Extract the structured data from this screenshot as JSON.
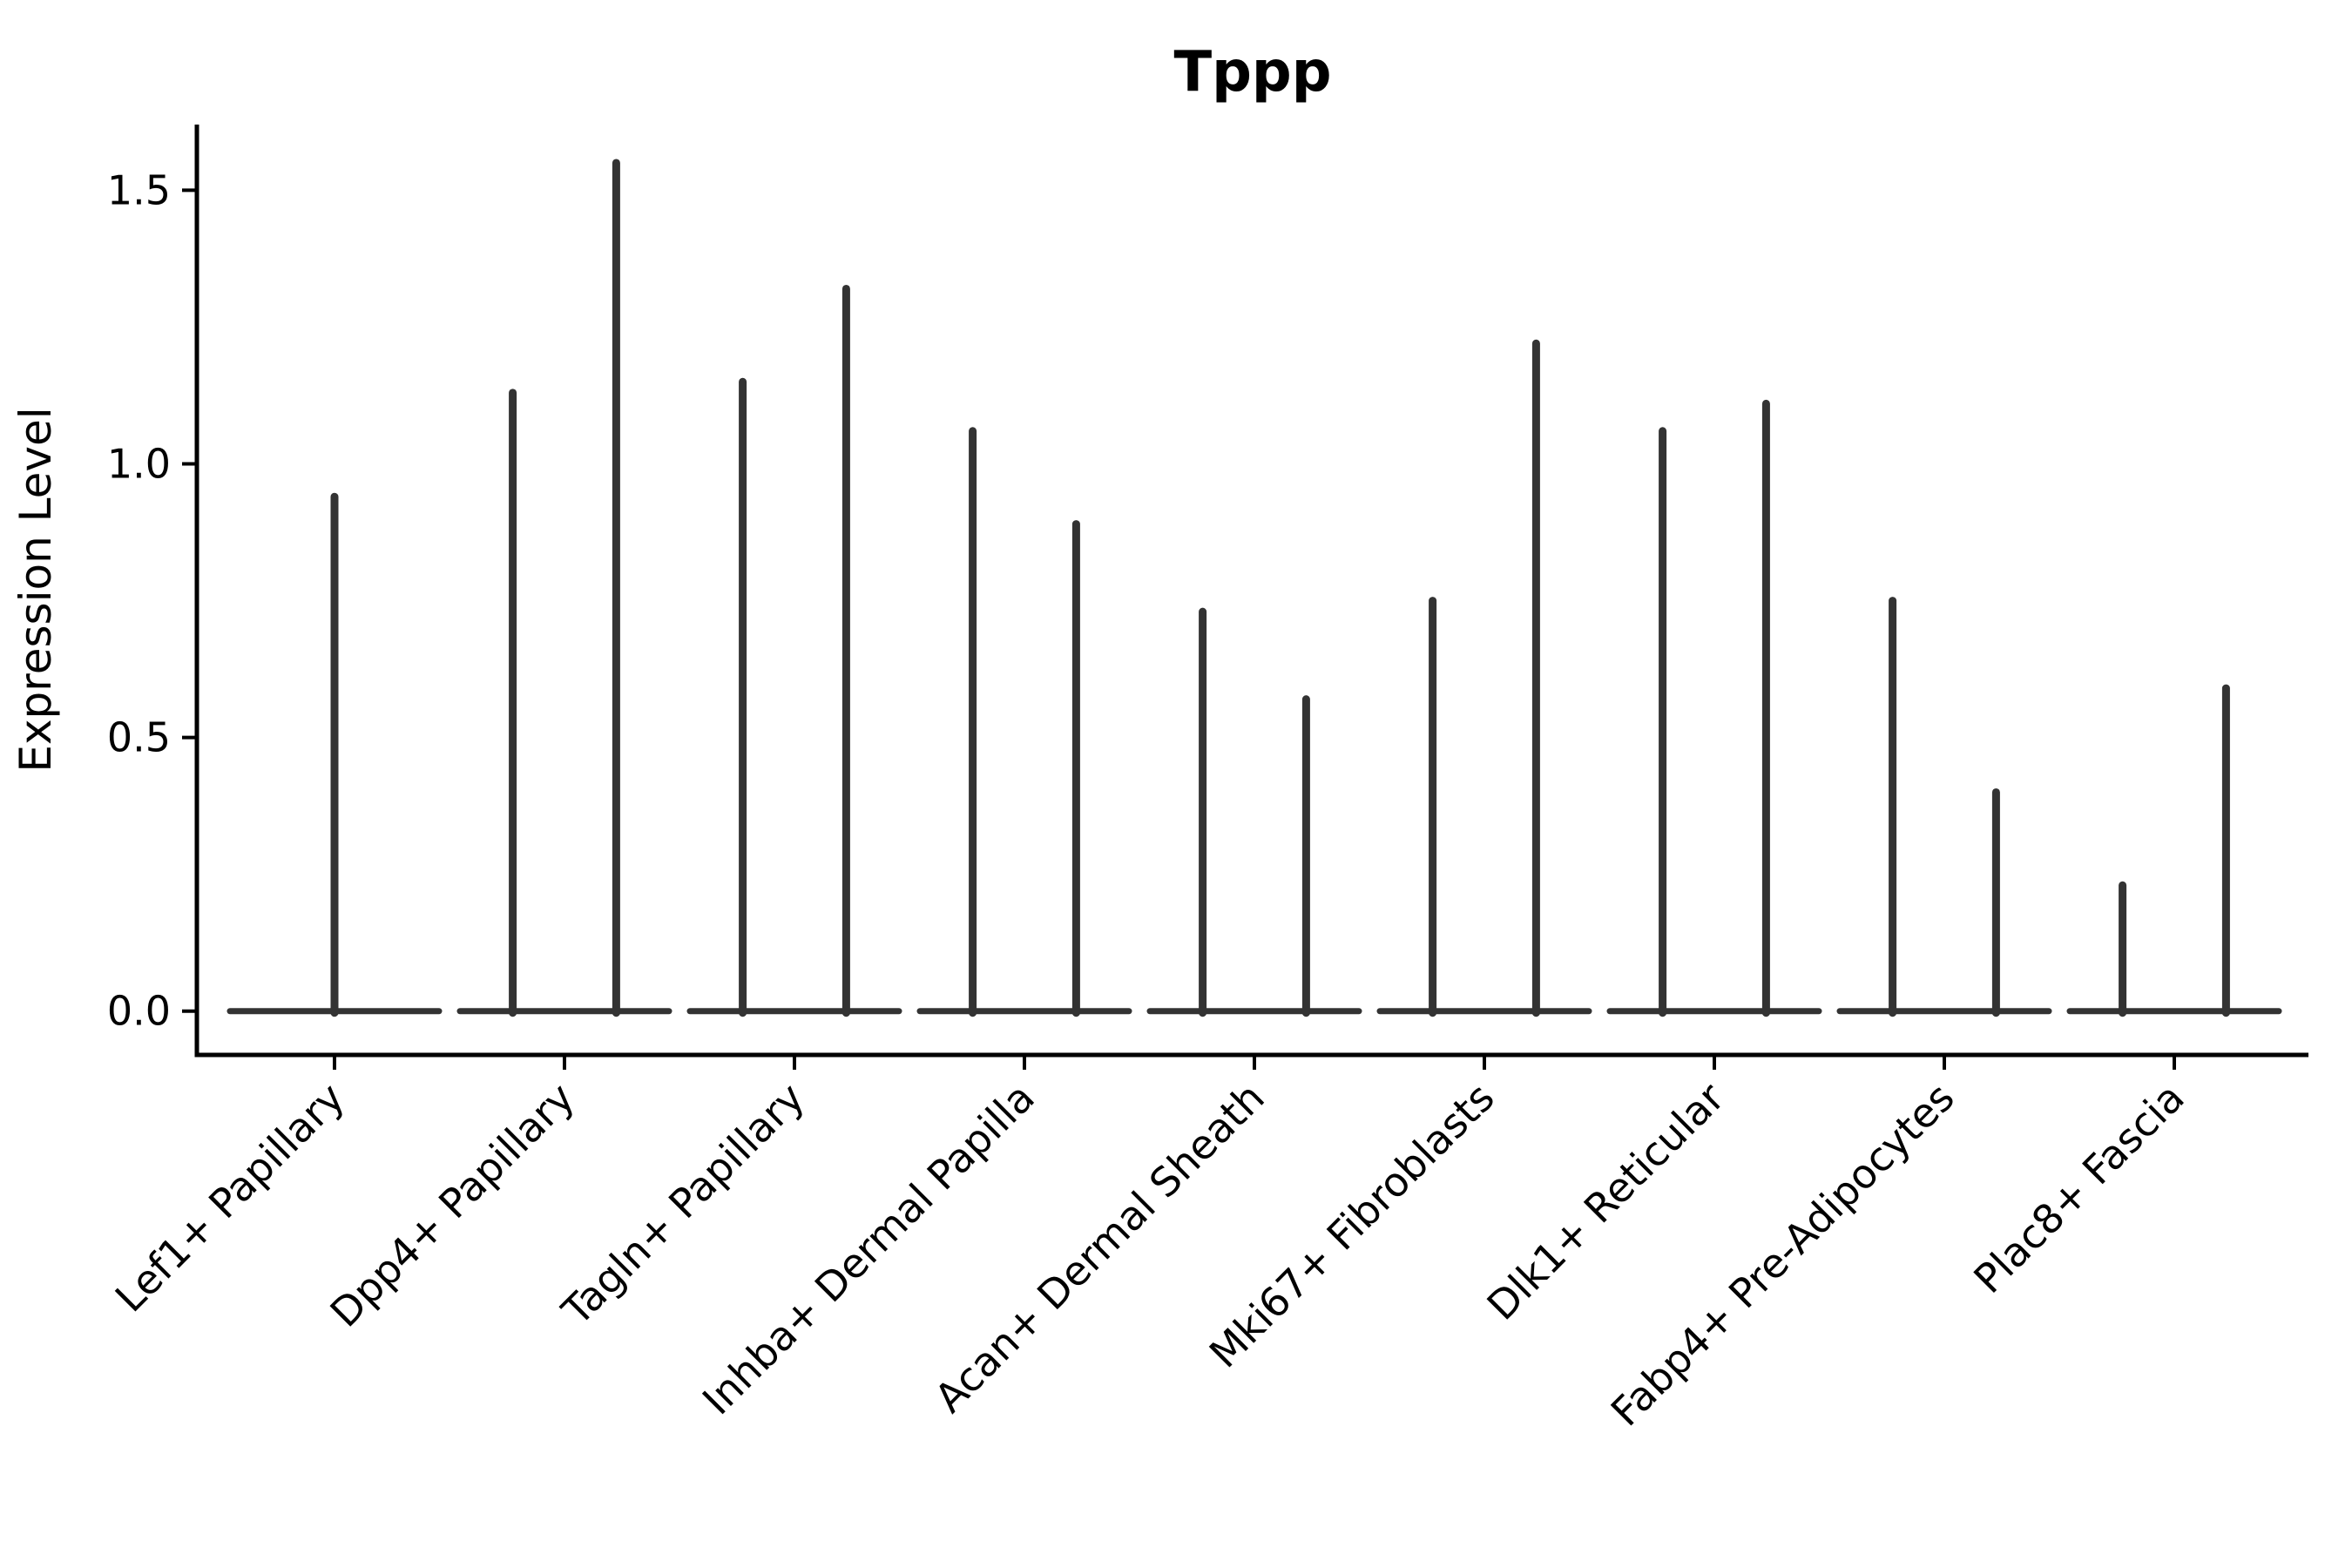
{
  "figure": {
    "background": "#ffffff"
  },
  "chart_data": {
    "type": "violin",
    "title": "Tppp",
    "xlabel": "",
    "ylabel": "Expression Level",
    "categories": [
      "Lef1+ Papillary",
      "Dpp4+ Papillary",
      "Tagln+ Papillary",
      "Inhba+ Dermal Papilla",
      "Acan+ Dermal Sheath",
      "Mki67+ Fibroblasts",
      "Dlk1+ Reticular",
      "Fabp4+ Pre-Adipocytes",
      "Plac8+ Fascia"
    ],
    "spike_maxima": [
      [
        0.94
      ],
      [
        1.13,
        1.55
      ],
      [
        1.15,
        1.32
      ],
      [
        1.06,
        0.89
      ],
      [
        0.73,
        0.57
      ],
      [
        0.75,
        1.22
      ],
      [
        1.06,
        1.11
      ],
      [
        0.75,
        0.4
      ],
      [
        0.23,
        0.59
      ]
    ],
    "baseline_value": 0.0,
    "ytick_labels": [
      "0.0",
      "0.5",
      "1.0",
      "1.5"
    ],
    "ytick_values": [
      0.0,
      0.5,
      1.0,
      1.5
    ],
    "ylim": [
      -0.08,
      1.62
    ],
    "x_tick_rotation_deg": 45,
    "grid": false,
    "legend": "none",
    "colors": {
      "violin": "#333333",
      "axis": "#000000",
      "text": "#000000"
    }
  }
}
